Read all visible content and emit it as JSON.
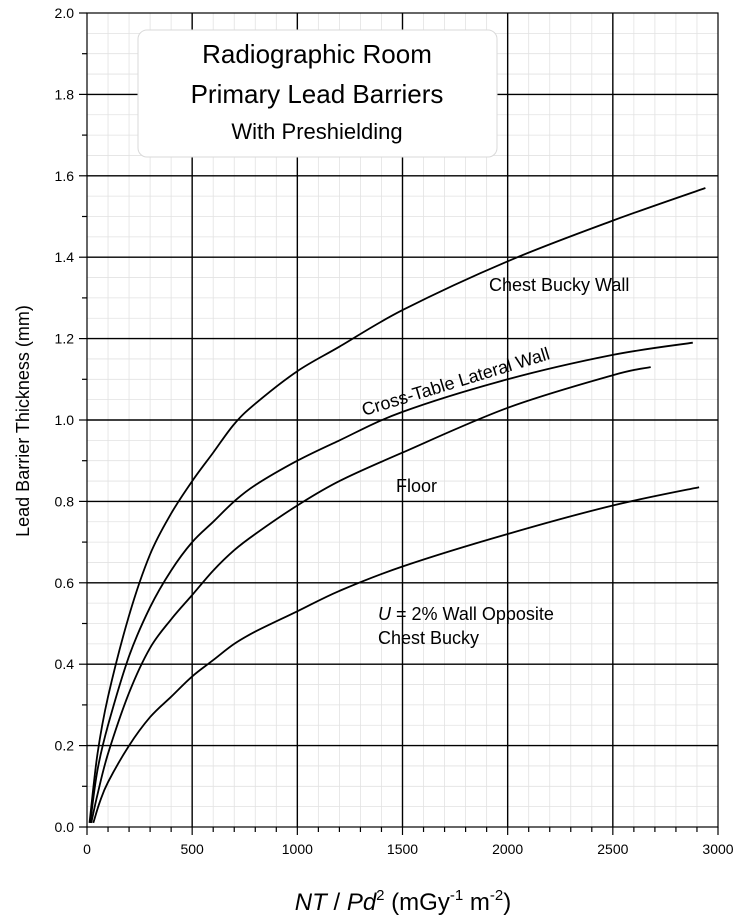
{
  "chart_data": {
    "type": "line",
    "title": {
      "line1": "Radiographic Room",
      "line2": "Primary Lead Barriers",
      "line3": "With Preshielding"
    },
    "xlabel": {
      "italic1": "NT",
      "sep": " / ",
      "italic2": "Pd",
      "exp": "2",
      "units_open": " (mGy",
      "units_exp1": "-1",
      "units_mid": " m",
      "units_exp2": "-2",
      "units_close": ")"
    },
    "ylabel": "Lead Barrier Thickness (mm)",
    "xlim": [
      0,
      3000
    ],
    "ylim": [
      0,
      2.0
    ],
    "x_ticks": [
      "0",
      "500",
      "1000",
      "1500",
      "2000",
      "2500",
      "3000"
    ],
    "y_ticks": [
      "0.0",
      "0.2",
      "0.4",
      "0.6",
      "0.8",
      "1.0",
      "1.2",
      "1.4",
      "1.6",
      "1.8",
      "2.0"
    ],
    "grid": true,
    "series": [
      {
        "name": "Chest Bucky Wall",
        "x": [
          12,
          50,
          100,
          200,
          300,
          400,
          500,
          600,
          700,
          800,
          1000,
          1200,
          1500,
          2000,
          2500,
          2940
        ],
        "y": [
          0.01,
          0.18,
          0.32,
          0.52,
          0.67,
          0.77,
          0.85,
          0.92,
          0.99,
          1.04,
          1.12,
          1.18,
          1.27,
          1.39,
          1.49,
          1.57
        ]
      },
      {
        "name": "Cross-Table Lateral Wall",
        "x": [
          15,
          50,
          100,
          200,
          300,
          400,
          500,
          600,
          700,
          800,
          1000,
          1200,
          1500,
          2000,
          2500,
          2880
        ],
        "y": [
          0.01,
          0.14,
          0.25,
          0.42,
          0.54,
          0.63,
          0.7,
          0.75,
          0.8,
          0.84,
          0.9,
          0.95,
          1.02,
          1.1,
          1.16,
          1.19
        ]
      },
      {
        "name": "Floor",
        "x": [
          20,
          50,
          100,
          200,
          300,
          400,
          500,
          600,
          700,
          800,
          1000,
          1200,
          1500,
          2000,
          2500,
          2680
        ],
        "y": [
          0.01,
          0.08,
          0.18,
          0.33,
          0.44,
          0.51,
          0.57,
          0.63,
          0.68,
          0.72,
          0.79,
          0.85,
          0.92,
          1.03,
          1.11,
          1.13
        ]
      },
      {
        "name": "U = 2% Wall Opposite Chest Bucky",
        "x": [
          30,
          60,
          100,
          200,
          300,
          400,
          500,
          600,
          700,
          800,
          1000,
          1200,
          1500,
          2000,
          2500,
          2910
        ],
        "y": [
          0.01,
          0.06,
          0.11,
          0.2,
          0.27,
          0.32,
          0.37,
          0.41,
          0.45,
          0.48,
          0.53,
          0.58,
          0.64,
          0.72,
          0.79,
          0.835
        ]
      }
    ],
    "labels": {
      "chest_bucky": "Chest Bucky Wall",
      "cross_table": "Cross-Table Lateral Wall",
      "floor": "Floor",
      "u_italic": "U",
      "u_rest": " = 2% Wall Opposite",
      "u_line2": "Chest Bucky"
    }
  }
}
